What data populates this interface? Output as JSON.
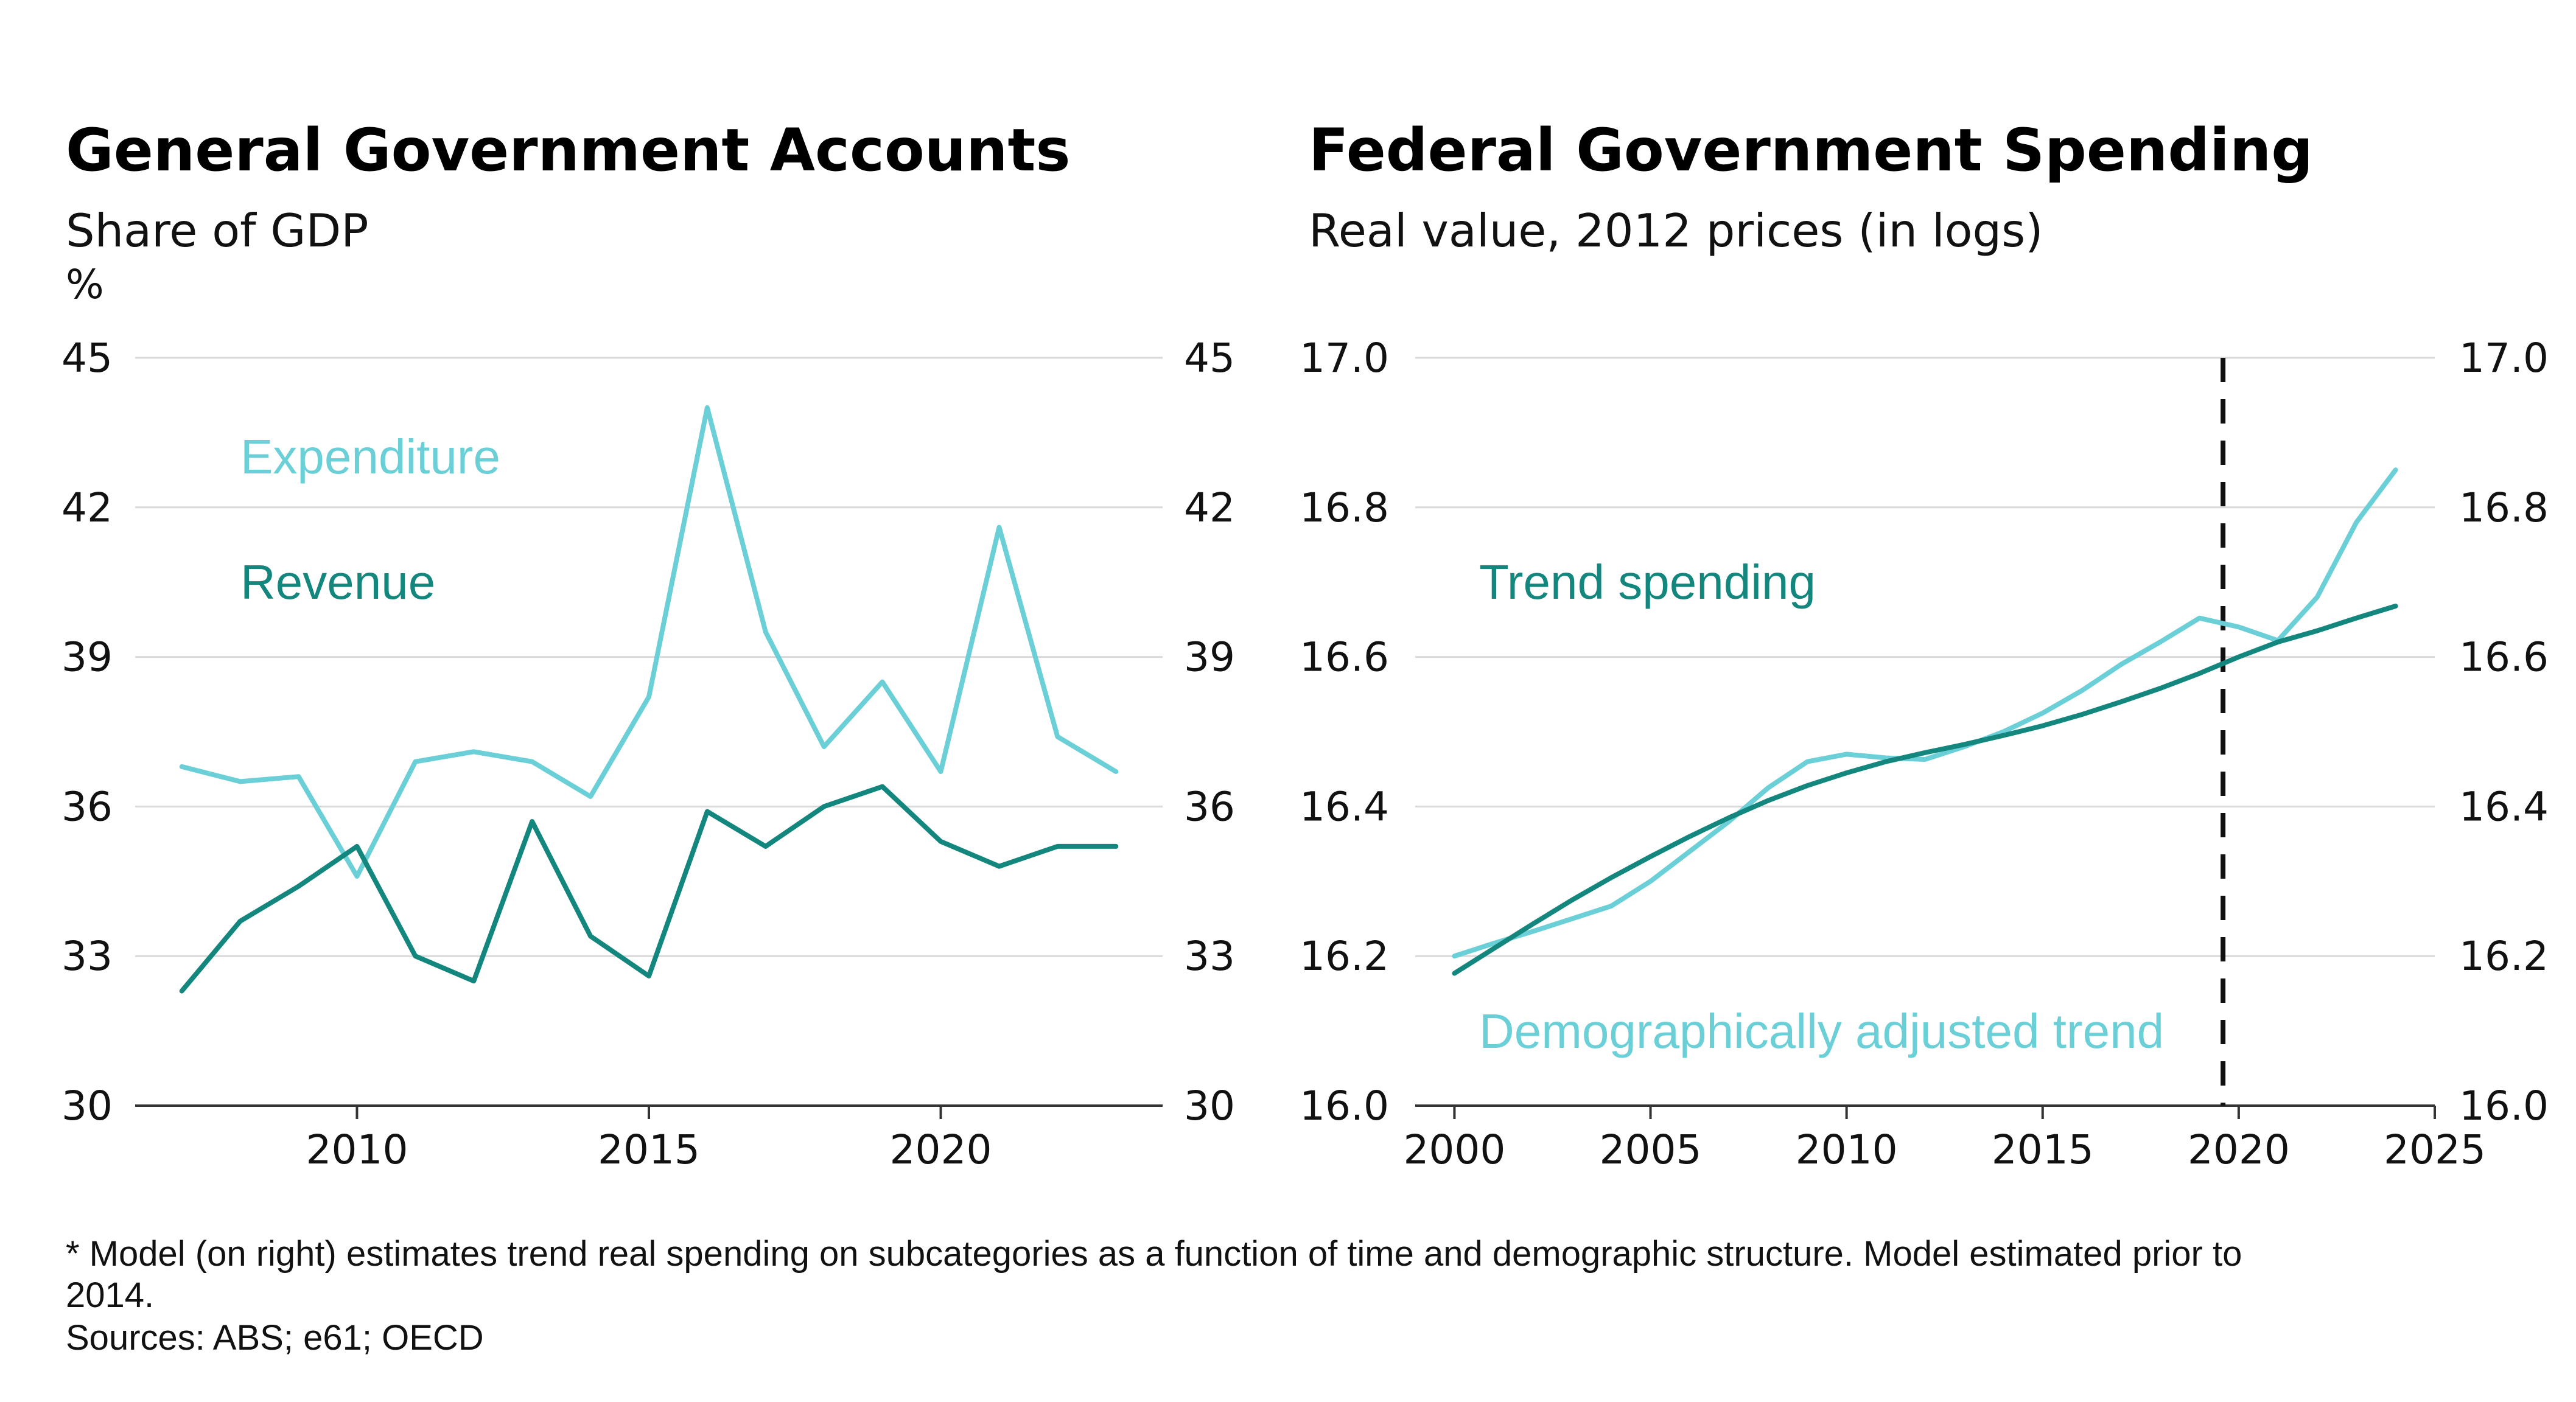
{
  "colors": {
    "light_teal": "#6acfd6",
    "dark_teal": "#13877e",
    "grid": "#d9d9d9",
    "axis": "#333333"
  },
  "footnote": {
    "line1": "* Model (on right) estimates trend real spending on subcategories as a function of time and demographic structure. Model estimated prior to",
    "line2": "2014.",
    "sources": "Sources: ABS; e61; OECD"
  },
  "chart_data": [
    {
      "type": "line",
      "title": "General Government Accounts",
      "subtitle": "Share of GDP",
      "unit_label": "%",
      "xlim": [
        2006.2,
        2023.8
      ],
      "ylim": [
        30,
        45
      ],
      "x_ticks": [
        2010,
        2015,
        2020
      ],
      "y_ticks": [
        30,
        33,
        36,
        39,
        42,
        45
      ],
      "y_axis": "both sides",
      "grid": true,
      "series": [
        {
          "name": "Expenditure",
          "color": "#6acfd6",
          "x": [
            2007,
            2008,
            2009,
            2010,
            2011,
            2012,
            2013,
            2014,
            2015,
            2016,
            2017,
            2018,
            2019,
            2020,
            2021,
            2022,
            2023
          ],
          "y": [
            36.8,
            36.5,
            36.6,
            34.6,
            36.9,
            37.1,
            36.9,
            36.2,
            38.2,
            44.0,
            39.5,
            37.2,
            38.5,
            36.7,
            41.6,
            37.4,
            36.7
          ]
        },
        {
          "name": "Revenue",
          "color": "#13877e",
          "x": [
            2007,
            2008,
            2009,
            2010,
            2011,
            2012,
            2013,
            2014,
            2015,
            2016,
            2017,
            2018,
            2019,
            2020,
            2021,
            2022,
            2023
          ],
          "y": [
            32.3,
            33.7,
            34.4,
            35.2,
            33.0,
            32.5,
            35.7,
            33.4,
            32.6,
            35.9,
            35.2,
            36.0,
            36.4,
            35.3,
            34.8,
            35.2,
            35.2
          ]
        }
      ]
    },
    {
      "type": "line",
      "title": "Federal Government Spending",
      "subtitle": "Real value, 2012 prices (in logs)",
      "xlim": [
        1999,
        2025
      ],
      "ylim": [
        16.0,
        17.0
      ],
      "x_ticks": [
        2000,
        2005,
        2010,
        2015,
        2020,
        2025
      ],
      "y_ticks": [
        16.0,
        16.2,
        16.4,
        16.6,
        16.8,
        17.0
      ],
      "y_tick_labels": [
        "16.0",
        "16.2",
        "16.4",
        "16.6",
        "16.8",
        "17.0"
      ],
      "y_axis": "both sides",
      "grid": true,
      "reference_line_x": 2019.6,
      "series": [
        {
          "name": "Demographically adjusted trend",
          "color": "#6acfd6",
          "x": [
            2000,
            2001,
            2002,
            2003,
            2004,
            2005,
            2006,
            2007,
            2008,
            2009,
            2010,
            2011,
            2012,
            2013,
            2014,
            2015,
            2016,
            2017,
            2018,
            2019,
            2020,
            2021,
            2022,
            2023,
            2024
          ],
          "y": [
            16.2,
            16.217,
            16.233,
            16.25,
            16.267,
            16.3,
            16.34,
            16.38,
            16.425,
            16.46,
            16.47,
            16.465,
            16.463,
            16.48,
            16.5,
            16.525,
            16.555,
            16.59,
            16.62,
            16.652,
            16.64,
            16.622,
            16.68,
            16.78,
            16.85
          ]
        },
        {
          "name": "Trend spending",
          "color": "#13877e",
          "x": [
            2000,
            2001,
            2002,
            2003,
            2004,
            2005,
            2006,
            2007,
            2008,
            2009,
            2010,
            2011,
            2012,
            2013,
            2014,
            2015,
            2016,
            2017,
            2018,
            2019,
            2020,
            2021,
            2022,
            2023,
            2024
          ],
          "y": [
            16.177,
            16.21,
            16.243,
            16.275,
            16.305,
            16.333,
            16.36,
            16.385,
            16.408,
            16.428,
            16.445,
            16.46,
            16.472,
            16.483,
            16.495,
            16.508,
            16.523,
            16.54,
            16.558,
            16.578,
            16.6,
            16.62,
            16.635,
            16.652,
            16.668
          ]
        }
      ]
    }
  ]
}
